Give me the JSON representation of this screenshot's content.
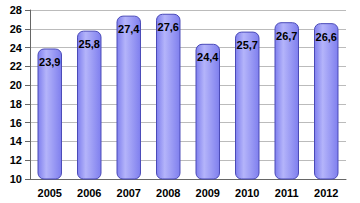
{
  "chart_data": {
    "type": "bar",
    "categories": [
      "2005",
      "2006",
      "2007",
      "2008",
      "2009",
      "2010",
      "2011",
      "2012"
    ],
    "values": [
      23.9,
      25.8,
      27.4,
      27.6,
      24.4,
      25.7,
      26.7,
      26.6
    ],
    "value_labels": [
      "23,9",
      "25,8",
      "27,4",
      "27,6",
      "24,4",
      "25,7",
      "26,7",
      "26,6"
    ],
    "color": "#7f7fee",
    "ylim": [
      10,
      28
    ],
    "yticks": [
      10,
      12,
      14,
      16,
      18,
      20,
      22,
      24,
      26,
      28
    ],
    "grid": true,
    "data_labels": true
  }
}
